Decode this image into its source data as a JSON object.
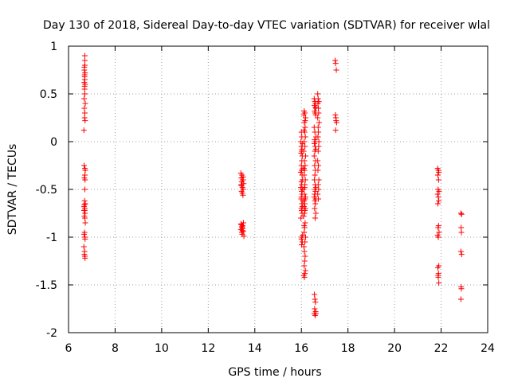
{
  "chart_data": {
    "type": "scatter",
    "title": "Day 130 of 2018, Sidereal Day-to-day VTEC variation (SDTVAR) for receiver wlal",
    "xlabel": "GPS time / hours",
    "ylabel": "SDTVAR / TECUs",
    "xlim": [
      6,
      24
    ],
    "ylim": [
      -2,
      1
    ],
    "xticks": [
      6,
      8,
      10,
      12,
      14,
      16,
      18,
      20,
      22,
      24
    ],
    "yticks": [
      -2,
      -1.5,
      -1,
      -0.5,
      0,
      0.5,
      1
    ],
    "xtick_labels": [
      "6",
      "8",
      "10",
      "12",
      "14",
      "16",
      "18",
      "20",
      "22",
      "24"
    ],
    "ytick_labels": [
      "-2",
      "-1.5",
      "-1",
      "-0.5",
      "0",
      "0.5",
      "1"
    ],
    "grid": true,
    "marker": "+",
    "color": "#ff0000",
    "series": [
      {
        "name": "SDTVAR",
        "x": [
          6.7,
          6.7,
          6.68,
          6.71,
          6.69,
          6.7,
          6.68,
          6.71,
          6.69,
          6.7,
          6.72,
          6.68,
          6.7,
          6.69,
          6.71,
          6.66,
          6.67,
          6.72,
          6.7,
          6.68,
          6.71,
          6.7,
          6.69,
          6.72,
          6.67,
          6.7,
          6.69,
          6.71,
          6.68,
          6.7,
          6.72,
          6.69,
          6.67,
          6.7,
          6.71,
          6.69,
          6.68,
          6.7,
          6.71,
          6.69,
          6.68,
          6.7,
          6.69,
          6.67,
          6.7,
          6.68,
          6.66,
          6.67,
          13.4,
          13.45,
          13.5,
          13.42,
          13.48,
          13.44,
          13.52,
          13.41,
          13.47,
          13.5,
          13.43,
          13.46,
          13.49,
          13.51,
          13.42,
          13.48,
          13.45,
          13.4,
          13.5,
          13.44,
          13.46,
          13.53,
          13.41,
          13.48,
          13.45,
          13.5,
          13.43,
          13.47,
          16.0,
          16.02,
          15.98,
          16.05,
          16.0,
          16.03,
          16.01,
          15.99,
          16.04,
          16.02,
          16.0,
          16.06,
          16.01,
          15.97,
          16.03,
          16.05,
          16.0,
          16.02,
          15.98,
          16.04,
          16.01,
          16.03,
          16.0,
          15.99,
          16.06,
          16.02,
          16.04,
          16.0,
          16.01,
          16.03,
          15.98,
          16.05,
          16.02,
          16.0,
          16.04,
          16.01,
          16.12,
          16.15,
          16.1,
          16.18,
          16.13,
          16.16,
          16.11,
          16.14,
          16.17,
          16.12,
          16.15,
          16.1,
          16.18,
          16.13,
          16.16,
          16.11,
          16.14,
          16.12,
          16.17,
          16.15,
          16.1,
          16.13,
          16.18,
          16.16,
          16.12,
          16.14,
          16.11,
          16.17,
          16.15,
          16.13,
          16.1,
          16.16,
          16.14,
          16.12,
          16.18,
          16.15,
          16.11,
          16.13,
          16.16,
          16.14,
          16.12,
          16.17,
          16.15,
          16.1,
          16.13,
          16.16,
          16.14,
          16.12,
          16.55,
          16.58,
          16.6,
          16.56,
          16.62,
          16.57,
          16.59,
          16.61,
          16.55,
          16.58,
          16.63,
          16.57,
          16.6,
          16.56,
          16.59,
          16.62,
          16.58,
          16.55,
          16.61,
          16.57,
          16.6,
          16.58,
          16.56,
          16.59,
          16.62,
          16.58,
          16.6,
          16.57,
          16.55,
          16.61,
          16.58,
          16.6,
          16.57,
          16.62,
          16.59,
          16.56,
          16.58,
          16.6,
          16.57,
          16.61,
          16.55,
          16.59,
          16.62,
          16.58,
          16.6,
          16.7,
          16.72,
          16.75,
          16.71,
          16.73,
          16.74,
          16.7,
          16.76,
          16.72,
          16.73,
          16.71,
          16.75,
          16.74,
          16.72,
          16.7,
          16.73,
          16.71,
          16.75,
          16.72,
          16.74,
          16.7,
          16.73,
          17.45,
          17.47,
          17.5,
          17.46,
          17.48,
          17.49,
          17.51,
          17.47,
          21.85,
          21.88,
          21.9,
          21.86,
          21.89,
          21.87,
          21.91,
          21.85,
          21.88,
          21.9,
          21.86,
          21.89,
          21.87,
          21.91,
          21.85,
          21.88,
          21.9,
          21.86,
          21.89,
          21.87,
          21.88,
          21.9,
          22.85,
          22.88,
          22.86,
          22.87,
          22.85,
          22.88,
          22.86,
          22.87,
          22.85
        ],
        "y": [
          0.9,
          0.8,
          0.75,
          0.72,
          0.7,
          0.65,
          0.62,
          0.6,
          0.55,
          0.5,
          0.4,
          0.35,
          0.3,
          0.25,
          0.22,
          0.12,
          -0.25,
          -0.3,
          -0.35,
          -0.38,
          -0.4,
          -0.5,
          -0.62,
          -0.65,
          -0.68,
          -0.7,
          -0.72,
          -0.75,
          -0.78,
          -0.8,
          -0.85,
          -0.95,
          -0.97,
          -1.0,
          -1.02,
          -1.15,
          -1.18,
          -1.2,
          -1.22,
          0.68,
          0.78,
          0.85,
          0.58,
          0.45,
          -0.28,
          -0.66,
          -1.1,
          -0.72,
          -0.33,
          -0.35,
          -0.37,
          -0.38,
          -0.4,
          -0.42,
          -0.44,
          -0.45,
          -0.48,
          -0.5,
          -0.52,
          -0.54,
          -0.56,
          -0.85,
          -0.87,
          -0.88,
          -0.9,
          -0.92,
          -0.94,
          -0.95,
          -0.97,
          -0.99,
          -0.86,
          -0.91,
          -0.89,
          -0.4,
          -0.46,
          -0.93,
          0.1,
          0.05,
          0.0,
          -0.02,
          -0.05,
          -0.08,
          -0.1,
          -0.12,
          -0.15,
          -0.2,
          -0.25,
          -0.28,
          -0.3,
          -0.32,
          -0.35,
          -0.4,
          -0.42,
          -0.45,
          -0.48,
          -0.5,
          -0.52,
          -0.55,
          -0.58,
          -0.6,
          -0.62,
          -0.65,
          -0.68,
          -0.7,
          -0.72,
          -0.75,
          -0.8,
          -0.98,
          -1.0,
          -1.02,
          -1.05,
          -1.08,
          0.32,
          0.3,
          0.28,
          0.25,
          0.2,
          0.15,
          0.12,
          0.1,
          0.05,
          0.0,
          -0.05,
          -0.1,
          -0.15,
          -0.2,
          -0.25,
          -0.28,
          -0.3,
          -0.35,
          -0.4,
          -0.45,
          -0.5,
          -0.55,
          -0.58,
          -0.6,
          -0.62,
          -0.65,
          -0.68,
          -0.7,
          -0.72,
          -0.75,
          -0.78,
          -0.85,
          -0.9,
          -0.95,
          -1.0,
          -1.05,
          -1.1,
          -1.15,
          -1.2,
          -1.25,
          -1.3,
          -1.35,
          -1.38,
          -1.4,
          -1.42,
          0.22,
          -0.48,
          -0.88,
          0.45,
          0.42,
          0.4,
          0.38,
          0.35,
          0.32,
          0.3,
          0.28,
          0.15,
          0.1,
          0.05,
          0.02,
          0.0,
          -0.02,
          -0.05,
          -0.08,
          -0.1,
          -0.15,
          -0.2,
          -0.25,
          -0.3,
          -0.35,
          -0.4,
          -0.45,
          -0.48,
          -0.5,
          -0.52,
          -0.55,
          -0.58,
          -0.6,
          -0.62,
          -0.65,
          -0.7,
          -0.75,
          -0.8,
          -1.6,
          -1.65,
          -1.68,
          -1.75,
          -1.78,
          -1.8,
          -1.82,
          -1.8,
          -0.55,
          0.36,
          0.5,
          0.45,
          0.42,
          0.4,
          0.35,
          0.3,
          0.25,
          0.2,
          0.15,
          0.1,
          0.05,
          0.0,
          -0.05,
          -0.1,
          -0.2,
          -0.25,
          -0.3,
          -0.4,
          -0.45,
          -0.5,
          -0.55,
          -0.6,
          0.85,
          0.82,
          0.75,
          0.28,
          0.25,
          0.22,
          0.2,
          0.12,
          -0.28,
          -0.3,
          -0.32,
          -0.35,
          -0.4,
          -0.5,
          -0.52,
          -0.55,
          -0.58,
          -0.62,
          -0.65,
          -0.88,
          -0.9,
          -0.95,
          -0.98,
          -1.0,
          -1.3,
          -1.32,
          -1.38,
          -1.4,
          -1.42,
          -1.48,
          -0.75,
          -0.76,
          -0.9,
          -0.95,
          -1.15,
          -1.18,
          -1.52,
          -1.54,
          -1.65
        ]
      }
    ]
  }
}
